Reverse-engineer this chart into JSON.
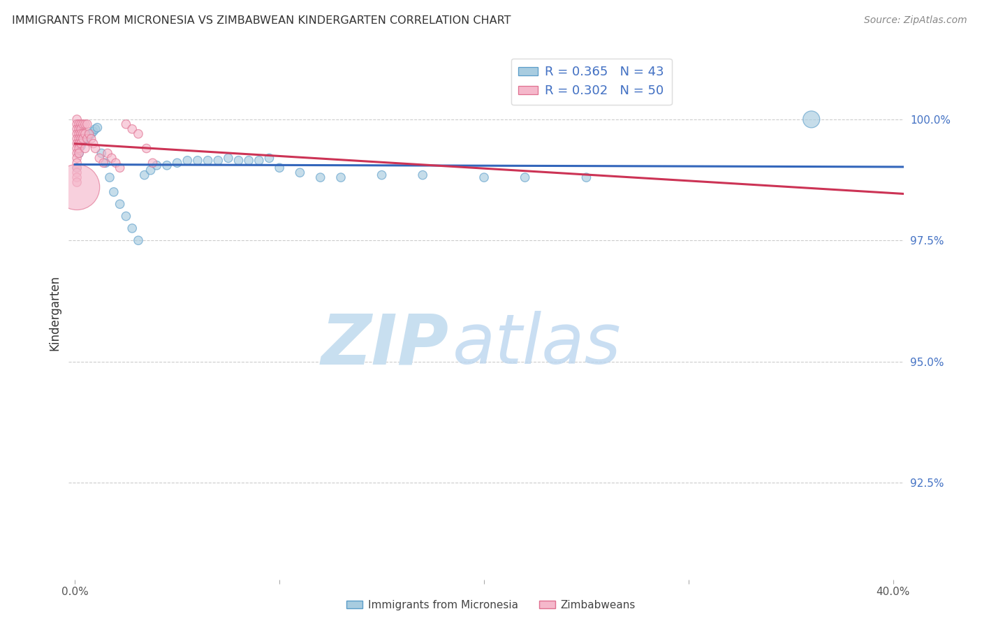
{
  "title": "IMMIGRANTS FROM MICRONESIA VS ZIMBABWEAN KINDERGARTEN CORRELATION CHART",
  "source": "Source: ZipAtlas.com",
  "ylabel": "Kindergarten",
  "ytick_labels": [
    "100.0%",
    "97.5%",
    "95.0%",
    "92.5%"
  ],
  "ytick_values": [
    1.0,
    0.975,
    0.95,
    0.925
  ],
  "xlim": [
    -0.003,
    0.405
  ],
  "ylim": [
    0.905,
    1.015
  ],
  "legend_blue_R": "0.365",
  "legend_blue_N": "43",
  "legend_pink_R": "0.302",
  "legend_pink_N": "50",
  "legend_label_blue": "Immigrants from Micronesia",
  "legend_label_pink": "Zimbabweans",
  "blue_color": "#a8cce0",
  "pink_color": "#f5b8cb",
  "blue_edge_color": "#5b9dc9",
  "pink_edge_color": "#e07090",
  "blue_line_color": "#3366bb",
  "pink_line_color": "#cc3355",
  "blue_x": [
    0.001,
    0.002,
    0.003,
    0.004,
    0.005,
    0.006,
    0.007,
    0.008,
    0.009,
    0.01,
    0.011,
    0.013,
    0.015,
    0.017,
    0.019,
    0.022,
    0.025,
    0.028,
    0.031,
    0.034,
    0.037,
    0.04,
    0.045,
    0.05,
    0.055,
    0.06,
    0.065,
    0.07,
    0.075,
    0.08,
    0.085,
    0.09,
    0.095,
    0.1,
    0.11,
    0.12,
    0.13,
    0.15,
    0.17,
    0.2,
    0.22,
    0.25,
    0.36
  ],
  "blue_y": [
    0.99,
    0.993,
    0.9945,
    0.9955,
    0.996,
    0.9965,
    0.9968,
    0.997,
    0.9975,
    0.998,
    0.9983,
    0.993,
    0.991,
    0.988,
    0.985,
    0.9825,
    0.98,
    0.9775,
    0.975,
    0.9885,
    0.9895,
    0.9905,
    0.9905,
    0.991,
    0.9915,
    0.9915,
    0.9915,
    0.9915,
    0.992,
    0.9915,
    0.9915,
    0.9915,
    0.992,
    0.99,
    0.989,
    0.988,
    0.988,
    0.9885,
    0.9885,
    0.988,
    0.988,
    0.988,
    1.0
  ],
  "blue_sizes": [
    80,
    80,
    80,
    80,
    80,
    80,
    80,
    80,
    80,
    80,
    80,
    80,
    80,
    80,
    80,
    80,
    80,
    80,
    80,
    80,
    80,
    80,
    80,
    80,
    80,
    80,
    80,
    80,
    80,
    80,
    80,
    80,
    80,
    80,
    80,
    80,
    80,
    80,
    80,
    80,
    80,
    80,
    300
  ],
  "pink_x": [
    0.001,
    0.001,
    0.001,
    0.001,
    0.001,
    0.001,
    0.001,
    0.001,
    0.001,
    0.001,
    0.001,
    0.001,
    0.001,
    0.001,
    0.001,
    0.002,
    0.002,
    0.002,
    0.002,
    0.002,
    0.002,
    0.002,
    0.003,
    0.003,
    0.003,
    0.003,
    0.003,
    0.004,
    0.004,
    0.004,
    0.005,
    0.005,
    0.005,
    0.006,
    0.006,
    0.007,
    0.008,
    0.009,
    0.01,
    0.012,
    0.014,
    0.016,
    0.018,
    0.02,
    0.022,
    0.025,
    0.028,
    0.031,
    0.035,
    0.038
  ],
  "pink_y": [
    1.0,
    0.999,
    0.998,
    0.997,
    0.996,
    0.995,
    0.994,
    0.993,
    0.992,
    0.991,
    0.99,
    0.989,
    0.988,
    0.987,
    0.986,
    0.999,
    0.998,
    0.997,
    0.996,
    0.995,
    0.994,
    0.993,
    0.999,
    0.998,
    0.997,
    0.996,
    0.995,
    0.999,
    0.997,
    0.996,
    0.999,
    0.997,
    0.994,
    0.999,
    0.996,
    0.997,
    0.996,
    0.995,
    0.994,
    0.992,
    0.991,
    0.993,
    0.992,
    0.991,
    0.99,
    0.999,
    0.998,
    0.997,
    0.994,
    0.991
  ],
  "pink_sizes": [
    80,
    80,
    80,
    80,
    80,
    80,
    80,
    80,
    80,
    80,
    80,
    80,
    80,
    80,
    2200,
    80,
    80,
    80,
    80,
    80,
    80,
    80,
    80,
    80,
    80,
    80,
    80,
    80,
    80,
    80,
    80,
    80,
    80,
    80,
    80,
    80,
    80,
    80,
    80,
    80,
    80,
    80,
    80,
    80,
    80,
    80,
    80,
    80,
    80,
    80
  ],
  "background_color": "#ffffff",
  "grid_color": "#cccccc",
  "title_color": "#333333",
  "axis_label_color": "#4472c4",
  "watermark_zip_color": "#c8dff0",
  "watermark_atlas_color": "#b8d4ee"
}
